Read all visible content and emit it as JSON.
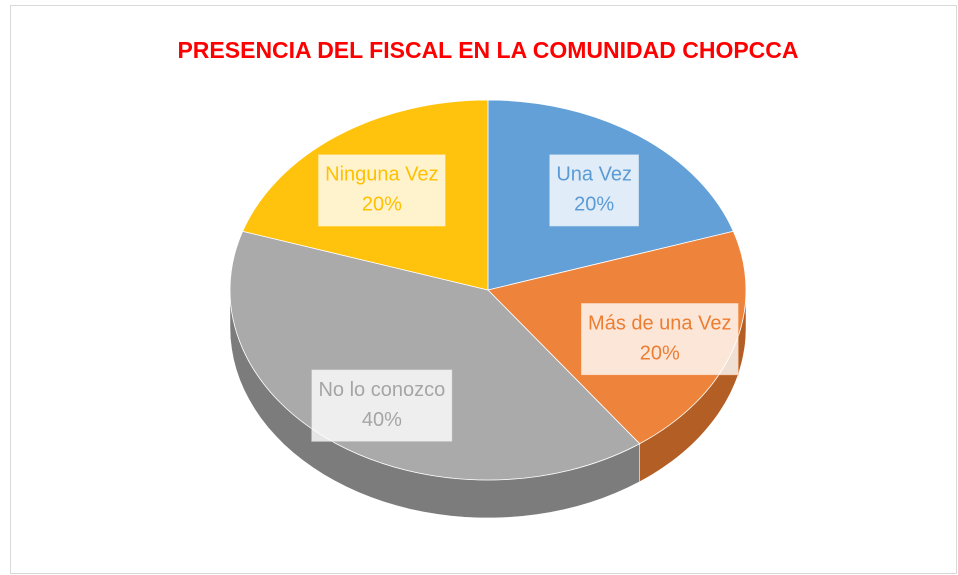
{
  "chart_data": {
    "type": "pie3d",
    "title": "PRESENCIA DEL FISCAL EN LA COMUNIDAD CHOPCCA",
    "categories": [
      "Una Vez",
      "Más de una Vez",
      "No lo conozco",
      "Ninguna Vez"
    ],
    "values": [
      20,
      20,
      40,
      20
    ],
    "value_labels": [
      "20%",
      "20%",
      "40%",
      "20%"
    ],
    "colors": [
      "#5b9bd5",
      "#ed7d31",
      "#a5a5a5",
      "#ffc000"
    ]
  }
}
